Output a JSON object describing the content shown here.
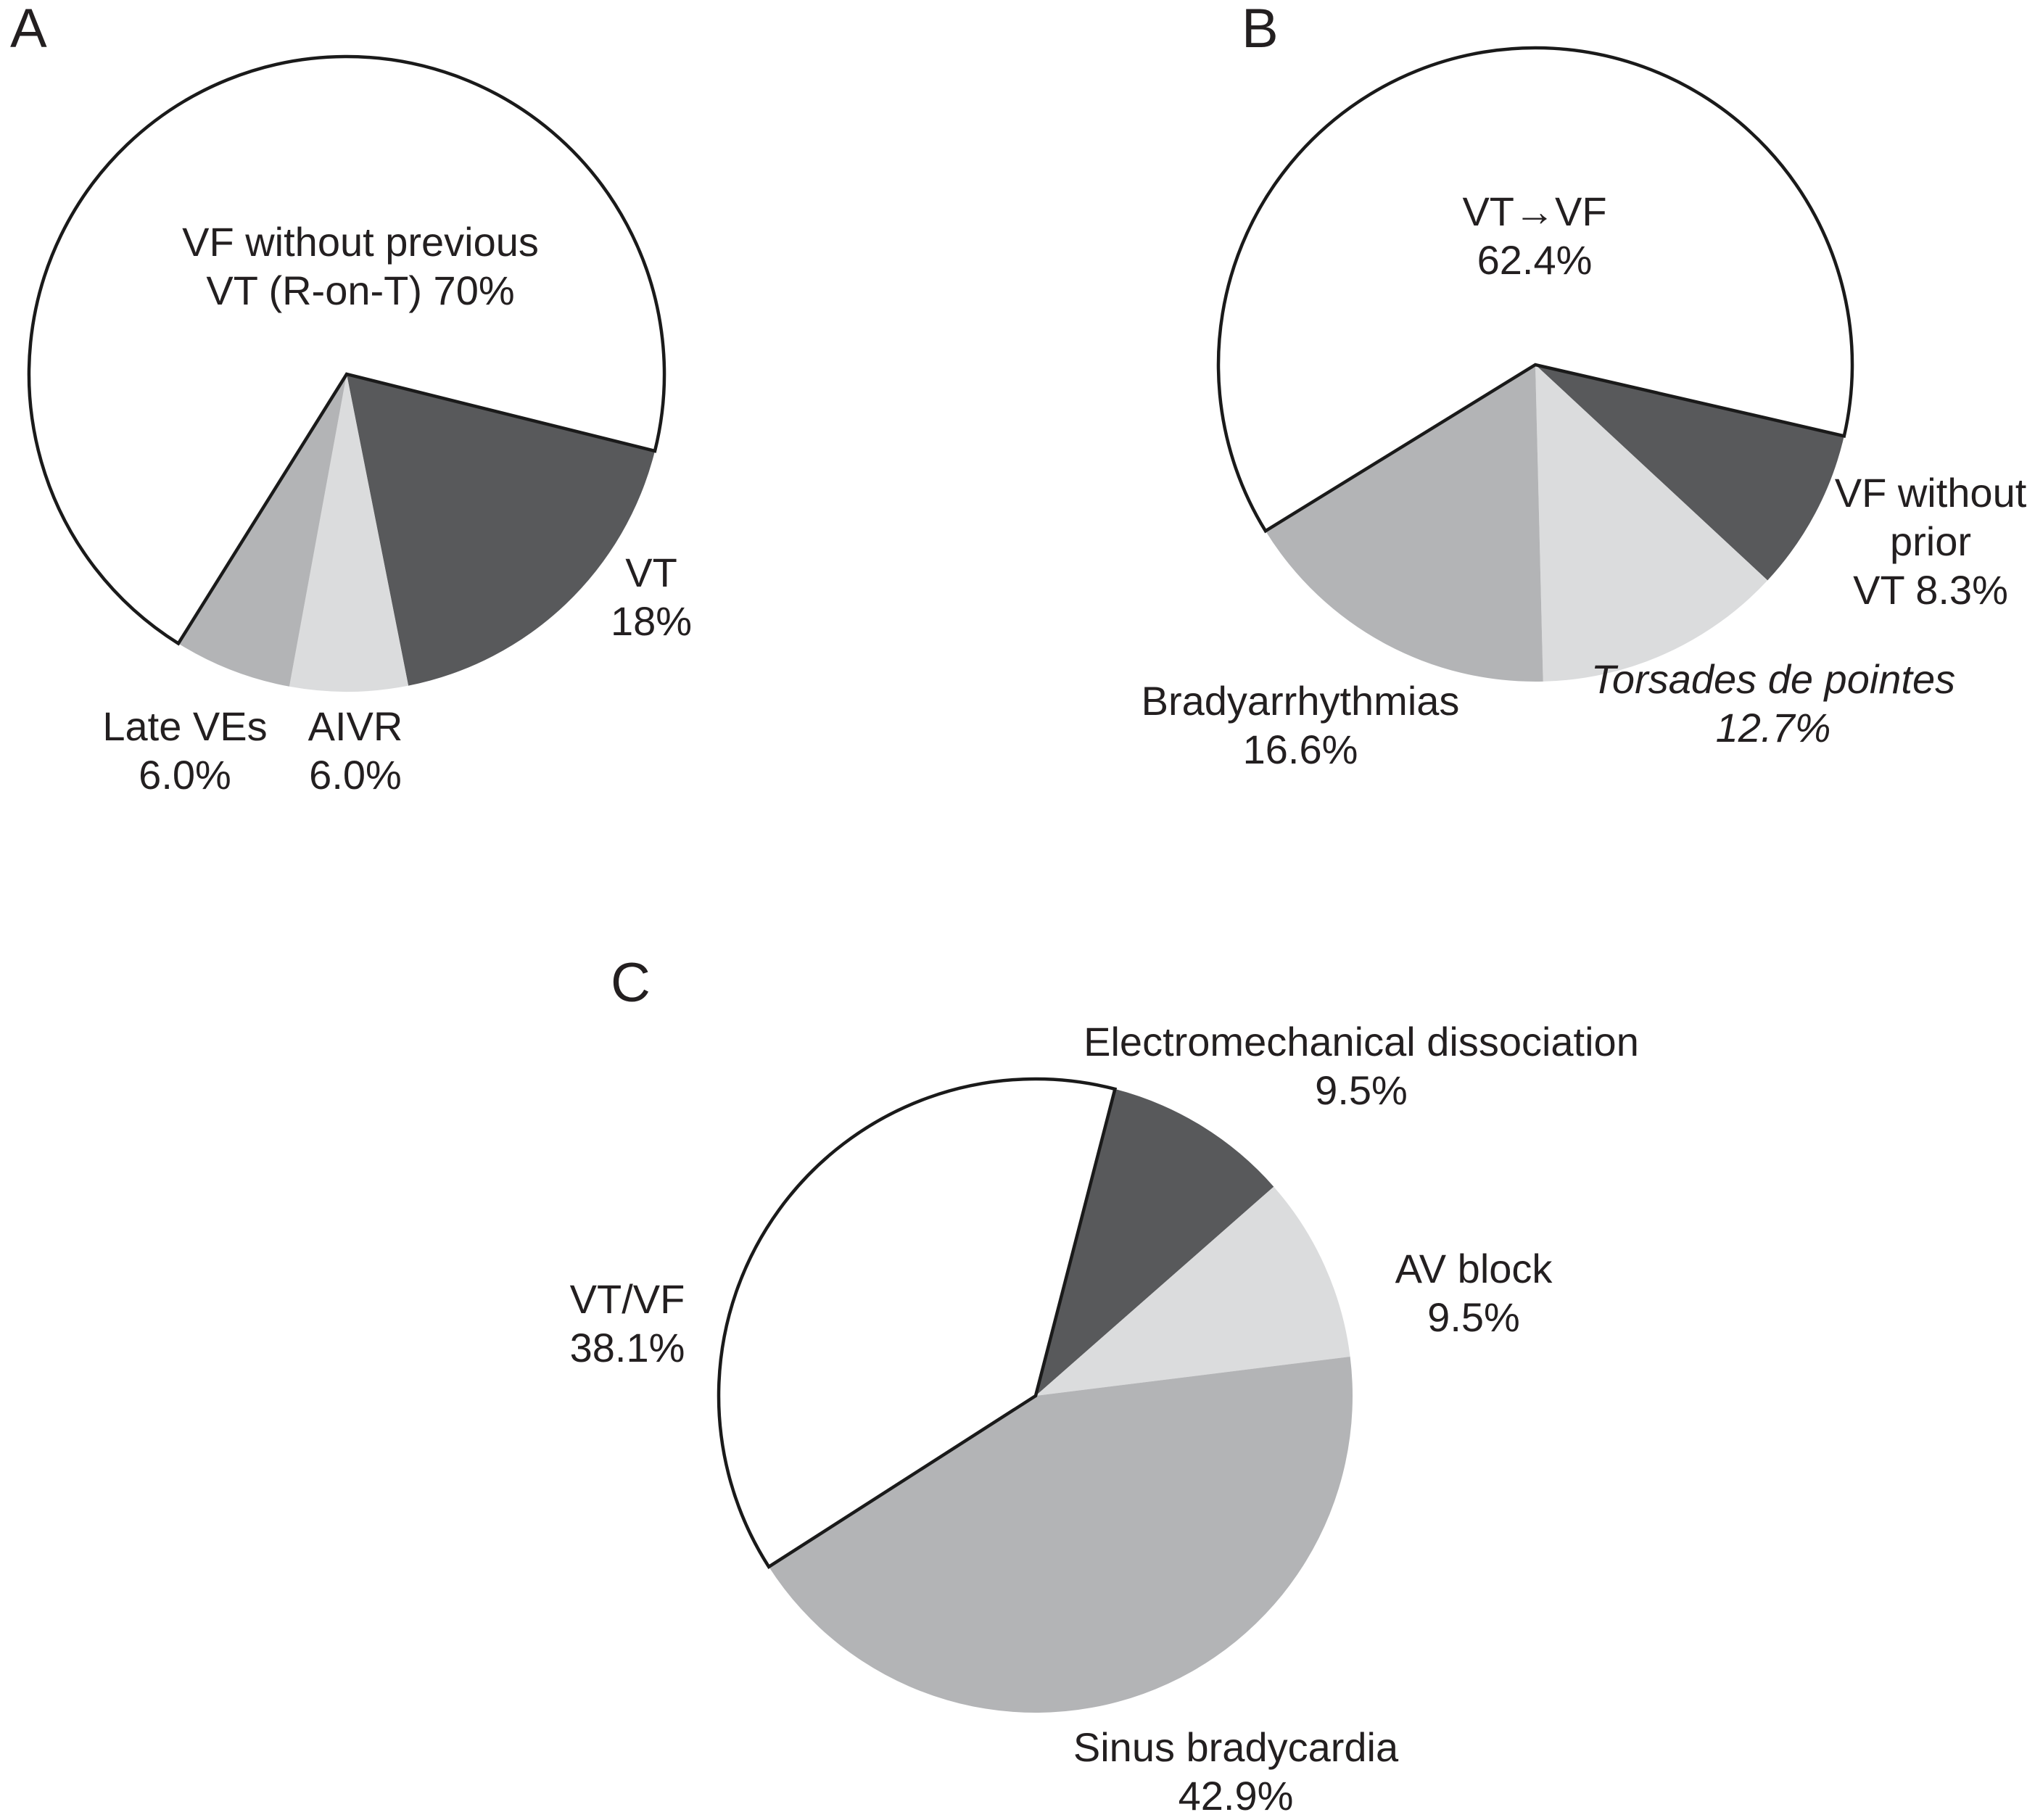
{
  "figure_background": "#ffffff",
  "text_color": "#231f20",
  "outline_color": "#1a1a1a",
  "chart_data": [
    {
      "panel": "A",
      "type": "pie",
      "legend_position": "none",
      "grid": false,
      "slices": [
        {
          "label": "VT",
          "value_pct": 18,
          "color": "#58595b",
          "outlined": false,
          "label_lines": [
            "VT",
            "18%"
          ]
        },
        {
          "label": "AIVR",
          "value_pct": 6.0,
          "color": "#dbdcdd",
          "outlined": false,
          "label_lines": [
            "AIVR",
            "6.0%"
          ]
        },
        {
          "label": "Late VEs",
          "value_pct": 6.0,
          "color": "#b3b4b6",
          "outlined": false,
          "label_lines": [
            "Late VEs",
            "6.0%"
          ]
        },
        {
          "label": "VF without previous VT (R-on-T)",
          "value_pct": 70,
          "color": "#ffffff",
          "outlined": true,
          "label_lines": [
            "VF without previous",
            "VT (R-on-T) 70%"
          ]
        }
      ]
    },
    {
      "panel": "B",
      "type": "pie",
      "legend_position": "none",
      "grid": false,
      "slices": [
        {
          "label": "VF without prior VT",
          "value_pct": 8.3,
          "color": "#58595b",
          "outlined": false,
          "label_lines": [
            "VF without",
            "prior",
            "VT 8.3%"
          ]
        },
        {
          "label": "Torsades de pointes",
          "value_pct": 12.7,
          "color": "#dbdcdd",
          "outlined": false,
          "label_lines": [
            "Torsades de pointes",
            "12.7%"
          ]
        },
        {
          "label": "Bradyarrhythmias",
          "value_pct": 16.6,
          "color": "#b3b4b6",
          "outlined": false,
          "label_lines": [
            "Bradyarrhythmias",
            "16.6%"
          ]
        },
        {
          "label": "VT→VF",
          "value_pct": 62.4,
          "color": "#ffffff",
          "outlined": true,
          "label_lines": [
            "VT→VF",
            "62.4%"
          ]
        }
      ]
    },
    {
      "panel": "C",
      "type": "pie",
      "legend_position": "none",
      "grid": false,
      "slices": [
        {
          "label": "Electromechanical dissociation",
          "value_pct": 9.5,
          "color": "#58595b",
          "outlined": false,
          "label_lines": [
            "Electromechanical dissociation",
            "9.5%"
          ]
        },
        {
          "label": "AV block",
          "value_pct": 9.5,
          "color": "#dbdcdd",
          "outlined": false,
          "label_lines": [
            "AV block",
            "9.5%"
          ]
        },
        {
          "label": "Sinus bradycardia",
          "value_pct": 42.9,
          "color": "#b3b4b6",
          "outlined": false,
          "label_lines": [
            "Sinus bradycardia",
            "42.9%"
          ]
        },
        {
          "label": "VT/VF",
          "value_pct": 38.1,
          "color": "#ffffff",
          "outlined": true,
          "label_lines": [
            "VT/VF",
            "38.1%"
          ]
        }
      ]
    }
  ]
}
